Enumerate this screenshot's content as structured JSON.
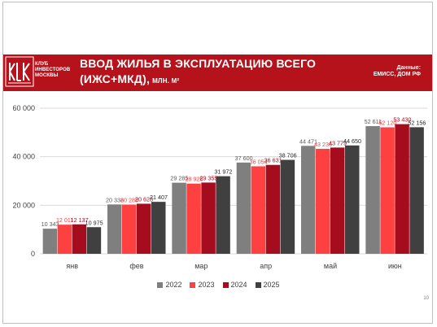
{
  "header": {
    "logo_lines": [
      "КЛУБ",
      "ИНВЕСТОРОВ",
      "МОСКВЫ"
    ],
    "title_line1": "ВВОД ЖИЛЬЯ В ЭКСПЛУАТАЦИЮ ВСЕГО",
    "title_line2": "(ИЖС+МКД),",
    "title_unit": "МЛН. М²",
    "source_line1": "Данные:",
    "source_line2": "ЕМИСС, ДОМ РФ"
  },
  "colors": {
    "brand_red": "#b5121b",
    "series_2022": "#7f7f7f",
    "series_2023": "#ff4040",
    "series_2024": "#a50d1e",
    "series_2025": "#404040"
  },
  "chart_data": {
    "type": "bar",
    "title": "",
    "xlabel": "",
    "ylabel": "",
    "categories": [
      "янв",
      "фев",
      "мар",
      "апр",
      "май",
      "июн"
    ],
    "ylim": [
      0,
      60000
    ],
    "yticks": [
      0,
      20000,
      40000,
      60000
    ],
    "ytick_labels": [
      "0",
      "20 000",
      "40 000",
      "60 000"
    ],
    "grid": true,
    "legend_position": "bottom",
    "series": [
      {
        "name": "2022",
        "values": [
          10343,
          20338,
          29285,
          37600,
          44471,
          52611
        ],
        "labels": [
          "10 343",
          "20 338",
          "29 285",
          "37 600",
          "44 471",
          "52 611"
        ]
      },
      {
        "name": "2023",
        "values": [
          12011,
          20288,
          28926,
          36054,
          43236,
          52120
        ],
        "labels": [
          "12 011",
          "20 288",
          "28 926",
          "36 054",
          "43 236",
          "52 120"
        ]
      },
      {
        "name": "2024",
        "values": [
          12137,
          20628,
          29355,
          36631,
          43779,
          53430
        ],
        "labels": [
          "12 137",
          "20 628",
          "29 355",
          "36 631",
          "43 779",
          "53 430"
        ]
      },
      {
        "name": "2025",
        "values": [
          10975,
          21407,
          31972,
          38706,
          44650,
          52156
        ],
        "labels": [
          "10 975",
          "21 407",
          "31 972",
          "38 706",
          "44 650",
          "52 156"
        ]
      }
    ]
  },
  "page_number": "10"
}
